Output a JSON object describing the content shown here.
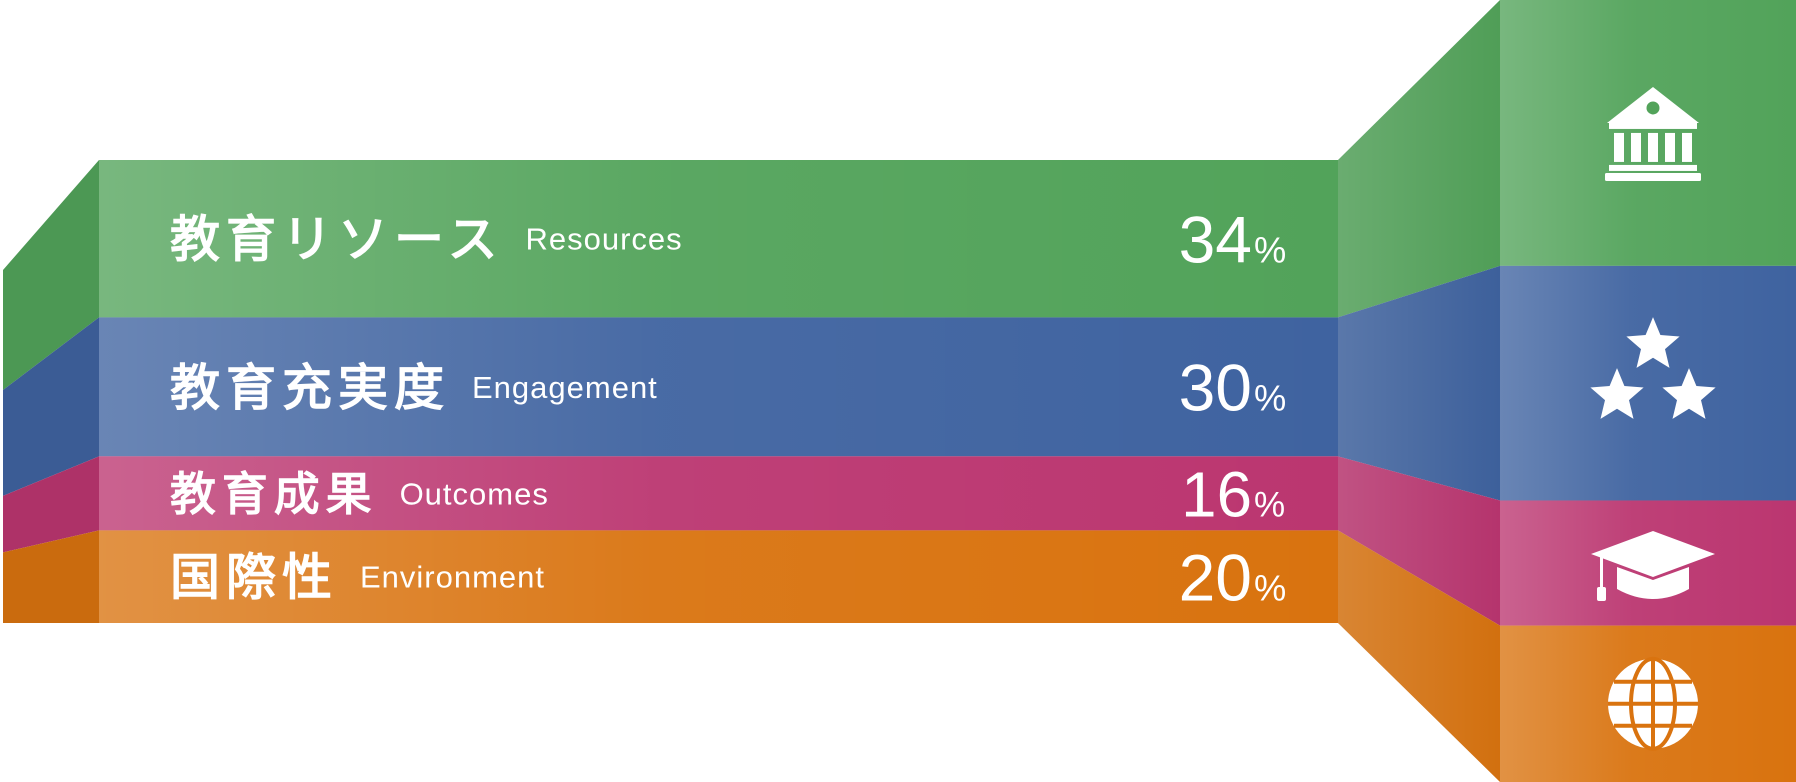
{
  "chart_data": {
    "type": "bar",
    "series": [
      {
        "name": "Share",
        "values": [
          34,
          30,
          16,
          20
        ]
      }
    ],
    "categories": [
      {
        "ja": "教育リソース",
        "en": "Resources",
        "value": 34,
        "unit": "%",
        "color": "#52a35a",
        "icon": "institution-icon"
      },
      {
        "ja": "教育充実度",
        "en": "Engagement",
        "value": 30,
        "unit": "%",
        "color": "#3f63a0",
        "icon": "three-stars-icon"
      },
      {
        "ja": "教育成果",
        "en": "Outcomes",
        "value": 16,
        "unit": "%",
        "color": "#bb3670",
        "icon": "graduation-cap-icon"
      },
      {
        "ja": "国際性",
        "en": "Environment",
        "value": 20,
        "unit": "%",
        "color": "#d9730f",
        "icon": "globe-icon"
      }
    ]
  }
}
